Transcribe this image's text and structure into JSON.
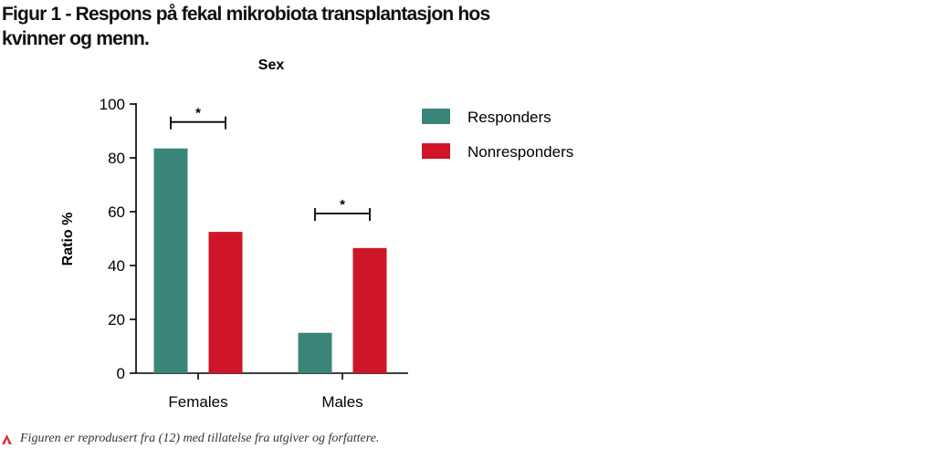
{
  "figure": {
    "title": "Figur 1 - Respons på fekal mikrobiota transplantasjon hos kvinner og menn.",
    "caption": "Figuren er reprodusert fra (12) med tillatelse fra utgiver og forfattere.",
    "caption_icon": "red-triangle-icon"
  },
  "chart_data": {
    "type": "bar",
    "title": "Sex",
    "xlabel": "",
    "ylabel": "Ratio %",
    "categories": [
      "Females",
      "Males"
    ],
    "series": [
      {
        "name": "Responders",
        "values": [
          83.5,
          15
        ],
        "color": "#3a857a"
      },
      {
        "name": "Nonresponders",
        "values": [
          52.5,
          46.5
        ],
        "color": "#ce1628"
      }
    ],
    "ylim": [
      0,
      100
    ],
    "yticks": [
      0,
      20,
      40,
      60,
      80,
      100
    ],
    "grid": false,
    "legend": "top-right",
    "annotations": [
      {
        "category": "Females",
        "text": "*"
      },
      {
        "category": "Males",
        "text": "*"
      }
    ]
  }
}
